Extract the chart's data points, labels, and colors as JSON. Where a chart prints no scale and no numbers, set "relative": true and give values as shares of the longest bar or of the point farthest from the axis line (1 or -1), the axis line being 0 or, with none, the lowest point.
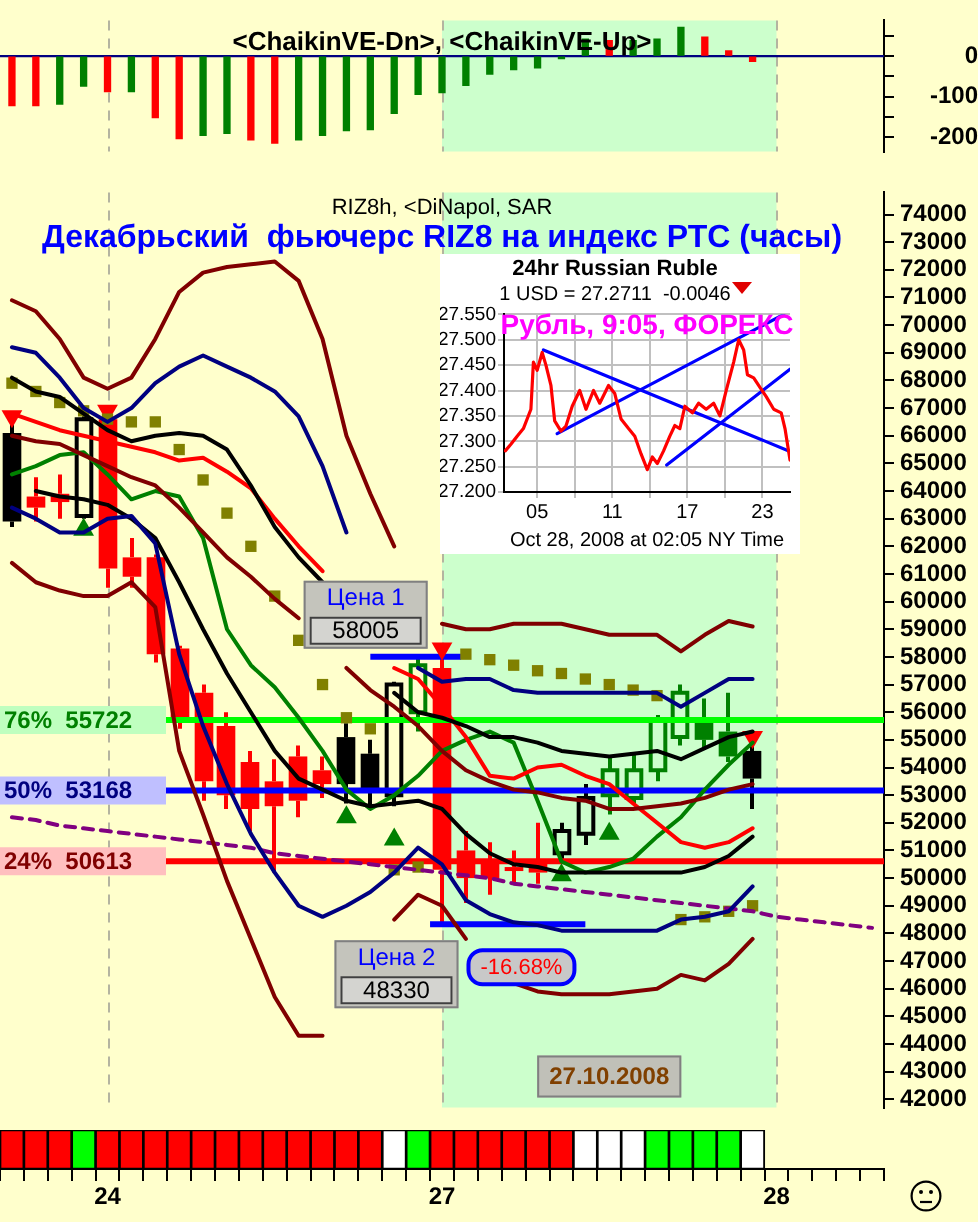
{
  "chart_data": [
    {
      "type": "bar",
      "title": "<ChaikinVE-Dn>, <ChaikinVE-Up>",
      "categories": [
        null,
        null,
        null,
        null,
        "24",
        null,
        null,
        null,
        null,
        null,
        null,
        null,
        null,
        null,
        null,
        null,
        null,
        null,
        "27",
        null,
        null,
        null,
        null,
        null,
        null,
        null,
        null,
        null,
        null,
        null,
        null,
        null,
        "28",
        null,
        null,
        null,
        null
      ],
      "values": [
        -122,
        -122,
        -118,
        -74,
        -87,
        -87,
        -151,
        -203,
        -195,
        -190,
        -206,
        -214,
        -206,
        -195,
        -183,
        -181,
        -141,
        -94,
        -90,
        -72,
        -44,
        -33,
        -29,
        -6,
        42,
        38,
        38,
        42,
        71,
        47,
        13,
        -13,
        null,
        null,
        null,
        null,
        null
      ],
      "colors": [
        "#ff0000",
        "#ff0000",
        "#008000",
        "#008000",
        "#ff0000",
        "#008000",
        "#ff0000",
        "#ff0000",
        "#008000",
        "#008000",
        "#ff0000",
        "#ff0000",
        "#008000",
        "#008000",
        "#008000",
        "#008000",
        "#008000",
        "#008000",
        "#008000",
        "#008000",
        "#008000",
        "#008000",
        "#008000",
        "#008000",
        "#008000",
        "#ff0000",
        "#008000",
        "#008000",
        "#008000",
        "#ff0000",
        "#ff0000",
        "#ff0000",
        null,
        null,
        null,
        null,
        null
      ],
      "ylim": [
        -235,
        88
      ],
      "yticks": [
        {
          "value": 50,
          "label": null
        },
        0,
        {
          "value": -50,
          "label": null
        },
        -100,
        {
          "value": -150,
          "label": null
        },
        -200
      ],
      "tick_labels": "y",
      "ref_lines": [
        {
          "axis": "y",
          "value": 0,
          "color": "#000080"
        },
        {
          "axis": "x",
          "value": "24",
          "color": "#b4b4a0",
          "line_style": "dashed"
        },
        {
          "axis": "x",
          "value": "27",
          "color": "#b4b4a0",
          "line_style": "dashed"
        },
        {
          "axis": "x",
          "value": "28",
          "color": "#b4b4a0",
          "line_style": "dashed"
        }
      ],
      "bands": [
        {
          "axis": "x",
          "from": "27",
          "to": "28",
          "color": "#ccffcc"
        }
      ]
    },
    {
      "type": "candlestick",
      "subtitle": "RIZ8h, <DiNapol, SAR",
      "title": "Декабрьский  фьючерс RIZ8 на индекс РТС (часы)",
      "categories": [
        null,
        null,
        null,
        null,
        "24",
        null,
        null,
        null,
        null,
        null,
        null,
        null,
        null,
        null,
        null,
        null,
        null,
        null,
        "27",
        null,
        null,
        null,
        null,
        null,
        null,
        null,
        null,
        null,
        null,
        null,
        null,
        null,
        "28",
        null,
        null,
        null,
        null
      ],
      "ohlc": [
        [
          66100,
          66500,
          62700,
          62900
        ],
        [
          63800,
          64500,
          62900,
          63400
        ],
        [
          63900,
          64600,
          63000,
          63600
        ],
        [
          63100,
          66700,
          63000,
          66600
        ],
        [
          66600,
          66700,
          60500,
          61200
        ],
        [
          61600,
          62300,
          60500,
          60900
        ],
        [
          61600,
          61700,
          57800,
          58100
        ],
        [
          58300,
          58400,
          55400,
          55700
        ],
        [
          56700,
          57000,
          52800,
          53500
        ],
        [
          55500,
          56000,
          52500,
          53000
        ],
        [
          54200,
          54600,
          51700,
          52500
        ],
        [
          53500,
          54300,
          50200,
          52600
        ],
        [
          54400,
          54800,
          52200,
          52800
        ],
        [
          53900,
          54400,
          52900,
          53400
        ],
        [
          55100,
          55600,
          52700,
          53400
        ],
        [
          54500,
          55000,
          52600,
          53200
        ],
        [
          53000,
          57100,
          52600,
          57000
        ],
        [
          56000,
          58000,
          55300,
          57700
        ],
        [
          57600,
          58005,
          48330,
          50300
        ],
        [
          51000,
          51700,
          49100,
          50000
        ],
        [
          50600,
          51300,
          49400,
          50000
        ],
        [
          50400,
          51000,
          49800,
          50300
        ],
        [
          50600,
          52000,
          49800,
          50200
        ],
        [
          50900,
          52000,
          50600,
          51700
        ],
        [
          51600,
          53400,
          51200,
          52900
        ],
        [
          53000,
          54400,
          52300,
          53900
        ],
        [
          52900,
          54500,
          52700,
          53900
        ],
        [
          53900,
          55900,
          53500,
          55700
        ],
        [
          55100,
          57000,
          54800,
          56700
        ],
        [
          55800,
          56500,
          54700,
          55000
        ],
        [
          55300,
          56700,
          54200,
          54400
        ],
        [
          54600,
          54800,
          52500,
          53600
        ],
        null,
        null,
        null,
        null,
        null
      ],
      "colors": [
        "#000000",
        "#ff0000",
        "#ff0000",
        "#000000",
        "#ff0000",
        "#ff0000",
        "#ff0000",
        "#ff0000",
        "#ff0000",
        "#ff0000",
        "#ff0000",
        "#ff0000",
        "#ff0000",
        "#ff0000",
        "#000000",
        "#000000",
        "#000000",
        "#008000",
        "#ff0000",
        "#ff0000",
        "#ff0000",
        "#ff0000",
        "#ff0000",
        "#000000",
        "#000000",
        "#008000",
        "#008000",
        "#008000",
        "#008000",
        "#008000",
        "#008000",
        "#000000",
        null,
        null,
        null,
        null,
        null
      ],
      "series": [
        {
          "type": "line",
          "color": "#800000",
          "values": [
            70900,
            70500,
            69500,
            68100,
            67700,
            68100,
            69500,
            71200,
            71900,
            72100,
            72200,
            72300,
            71600,
            69500,
            66000,
            63900,
            62000,
            null,
            59200,
            59000,
            59000,
            59200,
            59200,
            59200,
            59000,
            58800,
            58800,
            58800,
            58200,
            58800,
            59300,
            59100,
            null,
            null,
            null,
            null,
            null
          ]
        },
        {
          "type": "line",
          "color": "#800000",
          "values": [
            61400,
            60700,
            60400,
            60200,
            60200,
            60700,
            59800,
            54600,
            52300,
            49900,
            47800,
            45700,
            44300,
            44300,
            null,
            null,
            48500,
            49400,
            49000,
            47800,
            null,
            46200,
            45900,
            45800,
            45800,
            45800,
            45900,
            46000,
            46500,
            46300,
            46900,
            47800,
            null,
            null,
            null,
            null,
            null
          ]
        },
        {
          "type": "line",
          "color": "#000080",
          "values": [
            69200,
            69000,
            68100,
            67000,
            66500,
            67000,
            67900,
            68500,
            68900,
            68500,
            68100,
            67600,
            66700,
            64900,
            62500,
            null,
            null,
            57600,
            57100,
            57200,
            57200,
            56800,
            56700,
            56700,
            56700,
            56700,
            56700,
            56700,
            56200,
            56700,
            57200,
            57200,
            null,
            null,
            null,
            null,
            null
          ]
        },
        {
          "type": "line",
          "color": "#000080",
          "values": [
            63400,
            63000,
            62500,
            62500,
            63000,
            63100,
            62100,
            58100,
            55500,
            53400,
            51600,
            50200,
            49000,
            48600,
            49000,
            49500,
            50200,
            51100,
            50500,
            49200,
            48700,
            48400,
            48300,
            48100,
            48100,
            48100,
            48100,
            48100,
            48500,
            48600,
            48800,
            49700,
            null,
            null,
            null,
            null,
            null
          ]
        },
        {
          "type": "line",
          "color": "#000000",
          "values": [
            68100,
            67600,
            67400,
            66800,
            66200,
            65800,
            66000,
            66100,
            66000,
            65500,
            64200,
            62700,
            61600,
            60700,
            null,
            null,
            56700,
            56000,
            55800,
            55500,
            55100,
            55100,
            54900,
            54600,
            54500,
            54400,
            54500,
            54600,
            54300,
            54700,
            55100,
            55300,
            null,
            null,
            null,
            null,
            null
          ]
        },
        {
          "type": "line",
          "color": "#000000",
          "values": [
            null,
            64000,
            63800,
            63700,
            63500,
            63000,
            62300,
            60700,
            59000,
            57400,
            56000,
            54600,
            53600,
            53200,
            52800,
            52600,
            52700,
            52800,
            52500,
            51600,
            50900,
            50500,
            50400,
            50200,
            50200,
            50200,
            50200,
            50200,
            50200,
            50400,
            50800,
            51500,
            null,
            null,
            null,
            null,
            null
          ]
        },
        {
          "type": "line",
          "color": "#800000",
          "values": [
            66000,
            65800,
            65700,
            65300,
            64900,
            64500,
            64200,
            63400,
            62500,
            61600,
            60900,
            60100,
            59400,
            null,
            57600,
            56800,
            56200,
            55500,
            54600,
            53900,
            53500,
            53200,
            53100,
            52900,
            52800,
            52500,
            52500,
            52600,
            52700,
            52900,
            53200,
            53400,
            null,
            null,
            null,
            null,
            null
          ]
        },
        {
          "type": "line",
          "color": "#ff0000",
          "values": [
            66800,
            66500,
            66200,
            66000,
            65800,
            65600,
            65400,
            65100,
            65200,
            64700,
            64100,
            63000,
            62000,
            61100,
            null,
            null,
            57600,
            57200,
            56200,
            55100,
            53700,
            53600,
            54000,
            54100,
            53700,
            53400,
            52700,
            52000,
            51300,
            51100,
            51300,
            51800,
            null,
            null,
            null,
            null,
            null
          ]
        },
        {
          "type": "line",
          "color": "#008000",
          "values": [
            64600,
            64900,
            65300,
            65400,
            64600,
            63700,
            64000,
            63800,
            62300,
            59000,
            57700,
            56900,
            55800,
            54600,
            53200,
            52500,
            53000,
            53700,
            54600,
            55000,
            55300,
            54900,
            52800,
            50600,
            50200,
            50400,
            50700,
            51500,
            52200,
            53200,
            54100,
            54900,
            null,
            null,
            null,
            null,
            null
          ]
        },
        {
          "type": "line",
          "color": "#800080",
          "line_style": "dashed",
          "values": [
            52200,
            52100,
            51900,
            51800,
            51700,
            51600,
            51500,
            51400,
            51300,
            51200,
            51100,
            50900,
            50800,
            50700,
            50600,
            50500,
            50400,
            50300,
            50200,
            50100,
            50000,
            49800,
            49700,
            49600,
            49500,
            49400,
            49300,
            49200,
            49100,
            49000,
            48900,
            48800,
            48600,
            48500,
            48400,
            48300,
            48200
          ]
        },
        {
          "type": "scatter",
          "color": "#808000",
          "marker": "square",
          "values": [
            67900,
            67600,
            67200,
            66900,
            66600,
            66500,
            66500,
            65500,
            64400,
            63200,
            62000,
            60200,
            58600,
            57000,
            55800,
            55400,
            50300,
            50400,
            null,
            58100,
            57900,
            57700,
            57500,
            57400,
            57200,
            57000,
            56800,
            56600,
            48500,
            48600,
            48800,
            49000,
            null,
            null,
            null,
            null,
            null
          ]
        },
        {
          "type": "scatter",
          "color": "#ff0000",
          "marker": "triangle",
          "values": [
            66700,
            null,
            null,
            null,
            66900,
            null,
            null,
            null,
            null,
            null,
            null,
            null,
            null,
            null,
            null,
            null,
            null,
            null,
            58300,
            null,
            null,
            null,
            null,
            null,
            null,
            null,
            null,
            null,
            null,
            null,
            null,
            55100,
            null,
            null,
            null,
            null,
            null
          ]
        },
        {
          "type": "scatter",
          "color": "#008000",
          "marker": "triangle",
          "values": [
            null,
            null,
            null,
            62600,
            null,
            null,
            null,
            null,
            null,
            null,
            null,
            null,
            null,
            null,
            52200,
            null,
            51400,
            null,
            null,
            null,
            null,
            null,
            null,
            50100,
            null,
            51600,
            null,
            null,
            null,
            null,
            null,
            null,
            null,
            null,
            null,
            null,
            null
          ]
        }
      ],
      "ylim": [
        41700,
        74800
      ],
      "yticks": [
        42000,
        43000,
        44000,
        45000,
        46000,
        47000,
        48000,
        49000,
        50000,
        51000,
        52000,
        53000,
        54000,
        55000,
        56000,
        57000,
        58000,
        59000,
        60000,
        61000,
        62000,
        63000,
        64000,
        65000,
        66000,
        67000,
        68000,
        69000,
        70000,
        71000,
        72000,
        73000,
        74000
      ],
      "tick_labels": "y",
      "ref_lines": [
        {
          "axis": "x",
          "value": "24",
          "color": "#b4b4a0",
          "line_style": "dashed"
        },
        {
          "axis": "x",
          "value": "27",
          "color": "#b4b4a0",
          "line_style": "dashed"
        },
        {
          "axis": "x",
          "value": "28",
          "color": "#b4b4a0",
          "line_style": "dashed"
        },
        {
          "axis": "y",
          "value": 55722,
          "label": "76%  55722",
          "color": "#00ff00"
        },
        {
          "axis": "y",
          "value": 53168,
          "label": "50%  53168",
          "color": "#0000ff"
        },
        {
          "axis": "y",
          "value": 50613,
          "label": "24%  50613",
          "color": "#ff0000"
        },
        {
          "axis": "y",
          "value": 58005,
          "label": "Цена 1\n58005",
          "color": "#0000ff"
        },
        {
          "axis": "y",
          "value": 48330,
          "label": "Цена 2\n48330",
          "color": "#0000ff"
        }
      ],
      "bands": [
        {
          "axis": "x",
          "from": "27",
          "to": "28",
          "color": "#ccffcc"
        }
      ],
      "annotations": [
        "-16.68%",
        "27.10.2008"
      ]
    },
    {
      "type": "line",
      "title": "24hr Russian Ruble",
      "subtitle": "1 USD = 27.2711  -0.0046",
      "xlabel": "Oct 28, 2008 at 02:05 NY Time",
      "series": [
        {
          "color": "#ff0000",
          "x": [
            2.45,
            2.9,
            3.4,
            3.9,
            4.5,
            4.7,
            5.0,
            5.4,
            5.7,
            6.1,
            6.4,
            6.9,
            7.3,
            7.8,
            8.4,
            8.9,
            9.5,
            10.0,
            10.7,
            11.2,
            11.7,
            12.3,
            12.8,
            13.3,
            13.8,
            14.2,
            14.6,
            15.1,
            15.6,
            16.0,
            16.4,
            16.8,
            17.4,
            17.9,
            18.5,
            19.1,
            19.6,
            20.1,
            20.7,
            21.1,
            21.5,
            21.8,
            22.3,
            22.8,
            23.3,
            23.9,
            24.5,
            24.8,
            25.2
          ],
          "values": [
            27.281,
            27.294,
            27.31,
            27.325,
            27.363,
            27.456,
            27.44,
            27.475,
            27.45,
            27.41,
            27.34,
            27.32,
            27.33,
            27.369,
            27.4,
            27.363,
            27.4,
            27.375,
            27.41,
            27.394,
            27.344,
            27.325,
            27.31,
            27.275,
            27.244,
            27.269,
            27.256,
            27.281,
            27.31,
            27.331,
            27.325,
            27.369,
            27.356,
            27.375,
            27.363,
            27.375,
            27.35,
            27.4,
            27.456,
            27.5,
            27.48,
            27.431,
            27.425,
            27.406,
            27.388,
            27.363,
            27.356,
            27.325,
            27.263
          ]
        },
        {
          "color": "#0000ff",
          "x": [
            5.5,
            25.2
          ],
          "values": [
            27.48,
            27.28
          ]
        },
        {
          "color": "#0000ff",
          "x": [
            6.6,
            24.7
          ],
          "values": [
            27.315,
            27.55
          ]
        },
        {
          "color": "#0000ff",
          "x": [
            15.35,
            25.2
          ],
          "values": [
            27.253,
            27.442
          ]
        }
      ],
      "xlim": [
        2.35,
        25.2
      ],
      "xticks": [
        {
          "value": 5,
          "label": "05"
        },
        {
          "value": 8,
          "label": null
        },
        {
          "value": 11,
          "label": "11"
        },
        {
          "value": 14,
          "label": null
        },
        {
          "value": 17,
          "label": "17"
        },
        {
          "value": 20,
          "label": null
        },
        {
          "value": 23,
          "label": "23"
        }
      ],
      "ylim": [
        27.2,
        27.55
      ],
      "yticks": [
        {
          "value": 27.2,
          "label": "27.200"
        },
        {
          "value": 27.25,
          "label": "27.250"
        },
        {
          "value": 27.3,
          "label": "27.300"
        },
        {
          "value": 27.35,
          "label": "27.350"
        },
        {
          "value": 27.4,
          "label": "27.400"
        },
        {
          "value": 27.45,
          "label": "27.450"
        },
        {
          "value": 27.5,
          "label": "27.500"
        },
        {
          "value": 27.55,
          "label": "27.550"
        }
      ],
      "grid": true,
      "annotations": [
        "Рубль, 9:05, ФОРЕКС"
      ]
    },
    {
      "type": "bar",
      "relative": true,
      "categories": [
        null,
        null,
        null,
        null,
        "24",
        null,
        null,
        null,
        null,
        null,
        null,
        null,
        null,
        null,
        null,
        null,
        null,
        null,
        "27",
        null,
        null,
        null,
        null,
        null,
        null,
        null,
        null,
        null,
        null,
        null,
        null,
        null,
        "28",
        null,
        null,
        null,
        null
      ],
      "values": [
        1,
        1,
        1,
        1,
        1,
        1,
        1,
        1,
        1,
        1,
        1,
        1,
        1,
        1,
        1,
        1,
        1,
        1,
        1,
        1,
        1,
        1,
        1,
        1,
        1,
        1,
        1,
        1,
        1,
        1,
        1,
        1,
        null,
        null,
        null,
        null,
        null
      ],
      "colors": [
        "#ff0000",
        "#ff0000",
        "#ff0000",
        "#00ff00",
        "#ff0000",
        "#ff0000",
        "#ff0000",
        "#ff0000",
        "#ff0000",
        "#ff0000",
        "#ff0000",
        "#ff0000",
        "#ff0000",
        "#ff0000",
        "#ff0000",
        "#ff0000",
        "#ffffff",
        "#00ff00",
        "#ff0000",
        "#ff0000",
        "#ff0000",
        "#ff0000",
        "#ff0000",
        "#ff0000",
        "#ffffff",
        "#ffffff",
        "#ffffff",
        "#00ff00",
        "#00ff00",
        "#00ff00",
        "#00ff00",
        "#ffffff",
        null,
        null,
        null,
        null,
        null
      ]
    }
  ]
}
